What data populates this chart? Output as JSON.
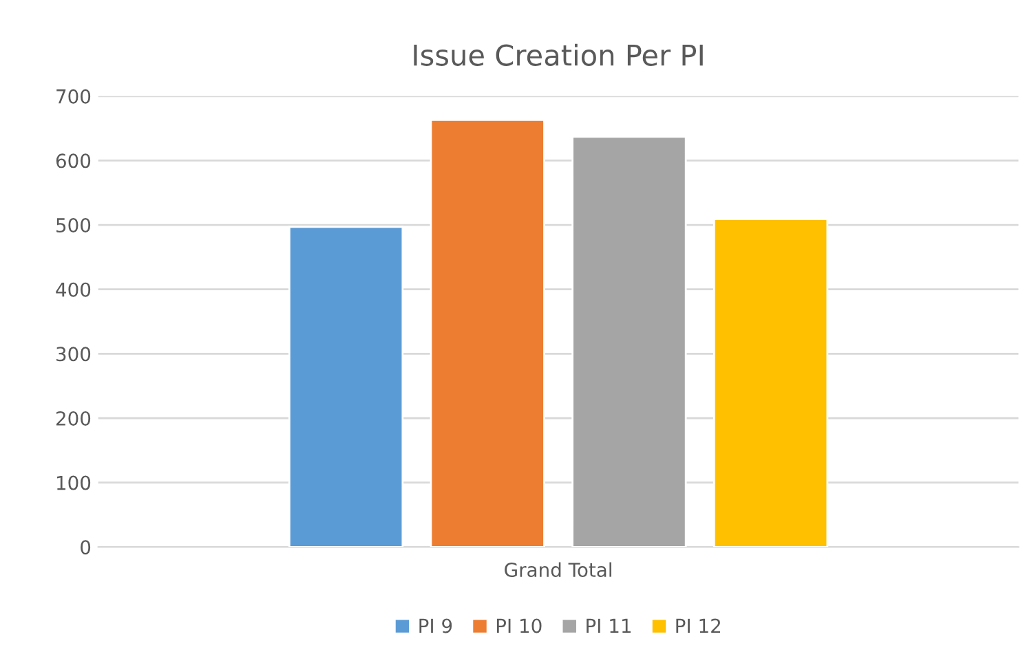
{
  "chart_data": {
    "type": "bar",
    "title": "Issue Creation Per PI",
    "categories": [
      "Grand Total"
    ],
    "series": [
      {
        "name": "PI 9",
        "color": "#5b9bd5",
        "values": [
          497
        ]
      },
      {
        "name": "PI 10",
        "color": "#ed7d31",
        "values": [
          663
        ]
      },
      {
        "name": "PI 11",
        "color": "#a5a5a5",
        "values": [
          637
        ]
      },
      {
        "name": "PI 12",
        "color": "#ffc000",
        "values": [
          509
        ]
      }
    ],
    "ylim": [
      0,
      700
    ],
    "yticks": [
      0,
      100,
      200,
      300,
      400,
      500,
      600,
      700
    ],
    "grid": "y",
    "legend": "bottom"
  }
}
